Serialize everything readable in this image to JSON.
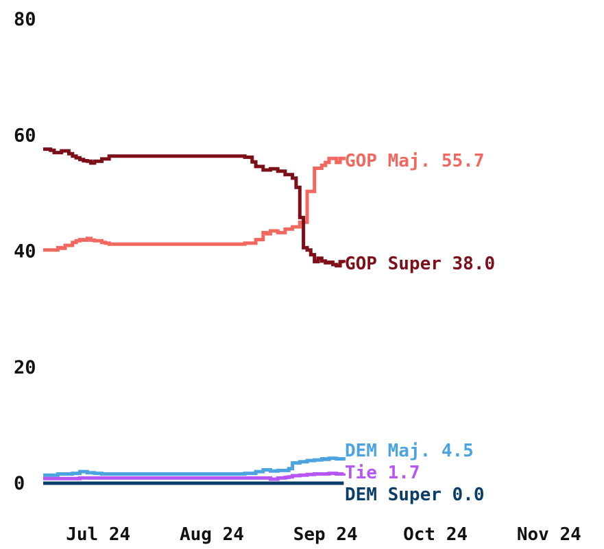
{
  "chart_data": {
    "type": "line",
    "title": "",
    "xlabel": "",
    "ylabel": "",
    "ylim": [
      0,
      80
    ],
    "yticks": [
      0,
      20,
      40,
      60,
      80
    ],
    "xticks": [
      "Jul 24",
      "Aug 24",
      "Sep 24",
      "Oct 24",
      "Nov 24"
    ],
    "xtick_positions_days": [
      15,
      46,
      77,
      107,
      138
    ],
    "xlim_days": [
      0,
      150
    ],
    "series": [
      {
        "name": "GOP Maj.",
        "end_label": "GOP Maj. 55.7",
        "color": "#f0685f",
        "x": [
          0,
          2,
          4,
          5,
          6,
          8,
          9,
          10,
          11,
          12,
          13,
          14,
          16,
          17,
          18,
          20,
          22,
          25,
          30,
          35,
          40,
          45,
          50,
          55,
          58,
          60,
          61,
          62,
          64,
          66,
          68,
          70,
          72,
          74,
          76,
          77,
          78,
          80,
          81,
          82
        ],
        "values": [
          40.2,
          40.2,
          40.6,
          40.5,
          41.0,
          41.5,
          41.8,
          42.0,
          41.9,
          42.2,
          41.9,
          41.8,
          41.5,
          41.4,
          41.2,
          41.2,
          41.2,
          41.2,
          41.2,
          41.2,
          41.2,
          41.2,
          41.2,
          41.4,
          42.0,
          43.2,
          43.0,
          43.5,
          43.2,
          43.8,
          44.2,
          45.0,
          50.3,
          54.3,
          54.8,
          55.3,
          56.0,
          55.3,
          56.0,
          55.7
        ]
      },
      {
        "name": "GOP Super",
        "end_label": "GOP Super 38.0",
        "color": "#7c0f17",
        "x": [
          0,
          2,
          3,
          5,
          7,
          8,
          9,
          10,
          11,
          12,
          13,
          14,
          16,
          18,
          20,
          25,
          30,
          35,
          40,
          45,
          50,
          53,
          55,
          57,
          58,
          60,
          62,
          64,
          66,
          68,
          69,
          70,
          71,
          72,
          73,
          74,
          75,
          76,
          77,
          78,
          79,
          80,
          81,
          82
        ],
        "values": [
          57.6,
          57.4,
          57.0,
          57.3,
          56.8,
          56.4,
          56.1,
          55.8,
          55.6,
          55.5,
          55.2,
          55.5,
          55.9,
          56.4,
          56.4,
          56.4,
          56.4,
          56.4,
          56.4,
          56.4,
          56.4,
          56.4,
          56.2,
          55.4,
          54.6,
          54.0,
          54.2,
          53.8,
          53.2,
          52.6,
          51.0,
          45.8,
          40.6,
          40.2,
          39.4,
          38.2,
          38.8,
          38.3,
          38.0,
          38.1,
          37.7,
          37.5,
          38.2,
          38.0
        ]
      },
      {
        "name": "DEM Maj.",
        "end_label": "DEM Maj. 4.5",
        "color": "#4ba3e0",
        "x": [
          0,
          4,
          8,
          10,
          12,
          14,
          16,
          20,
          25,
          30,
          35,
          40,
          45,
          50,
          55,
          58,
          60,
          62,
          64,
          67,
          68,
          70,
          72,
          74,
          76,
          77,
          78,
          80,
          82
        ],
        "values": [
          1.4,
          1.6,
          1.7,
          2.0,
          1.8,
          1.7,
          1.6,
          1.6,
          1.6,
          1.6,
          1.6,
          1.6,
          1.6,
          1.6,
          1.7,
          2.0,
          2.3,
          2.1,
          2.2,
          2.5,
          3.5,
          3.7,
          3.9,
          4.0,
          4.2,
          4.1,
          4.3,
          4.2,
          4.5
        ]
      },
      {
        "name": "Tie",
        "end_label": "Tie 1.7",
        "color": "#b657f5",
        "x": [
          0,
          10,
          20,
          30,
          40,
          50,
          55,
          60,
          62,
          64,
          66,
          67,
          68,
          70,
          72,
          74,
          76,
          78,
          80,
          82
        ],
        "values": [
          0.8,
          0.9,
          0.9,
          0.9,
          0.9,
          0.9,
          0.9,
          0.9,
          0.7,
          0.9,
          1.0,
          1.1,
          1.3,
          1.4,
          1.5,
          1.6,
          1.6,
          1.7,
          1.6,
          1.7
        ]
      },
      {
        "name": "DEM Super",
        "end_label": "DEM Super 0.0",
        "color": "#0b3d69",
        "x": [
          0,
          82
        ],
        "values": [
          0.0,
          0.0
        ]
      }
    ]
  }
}
